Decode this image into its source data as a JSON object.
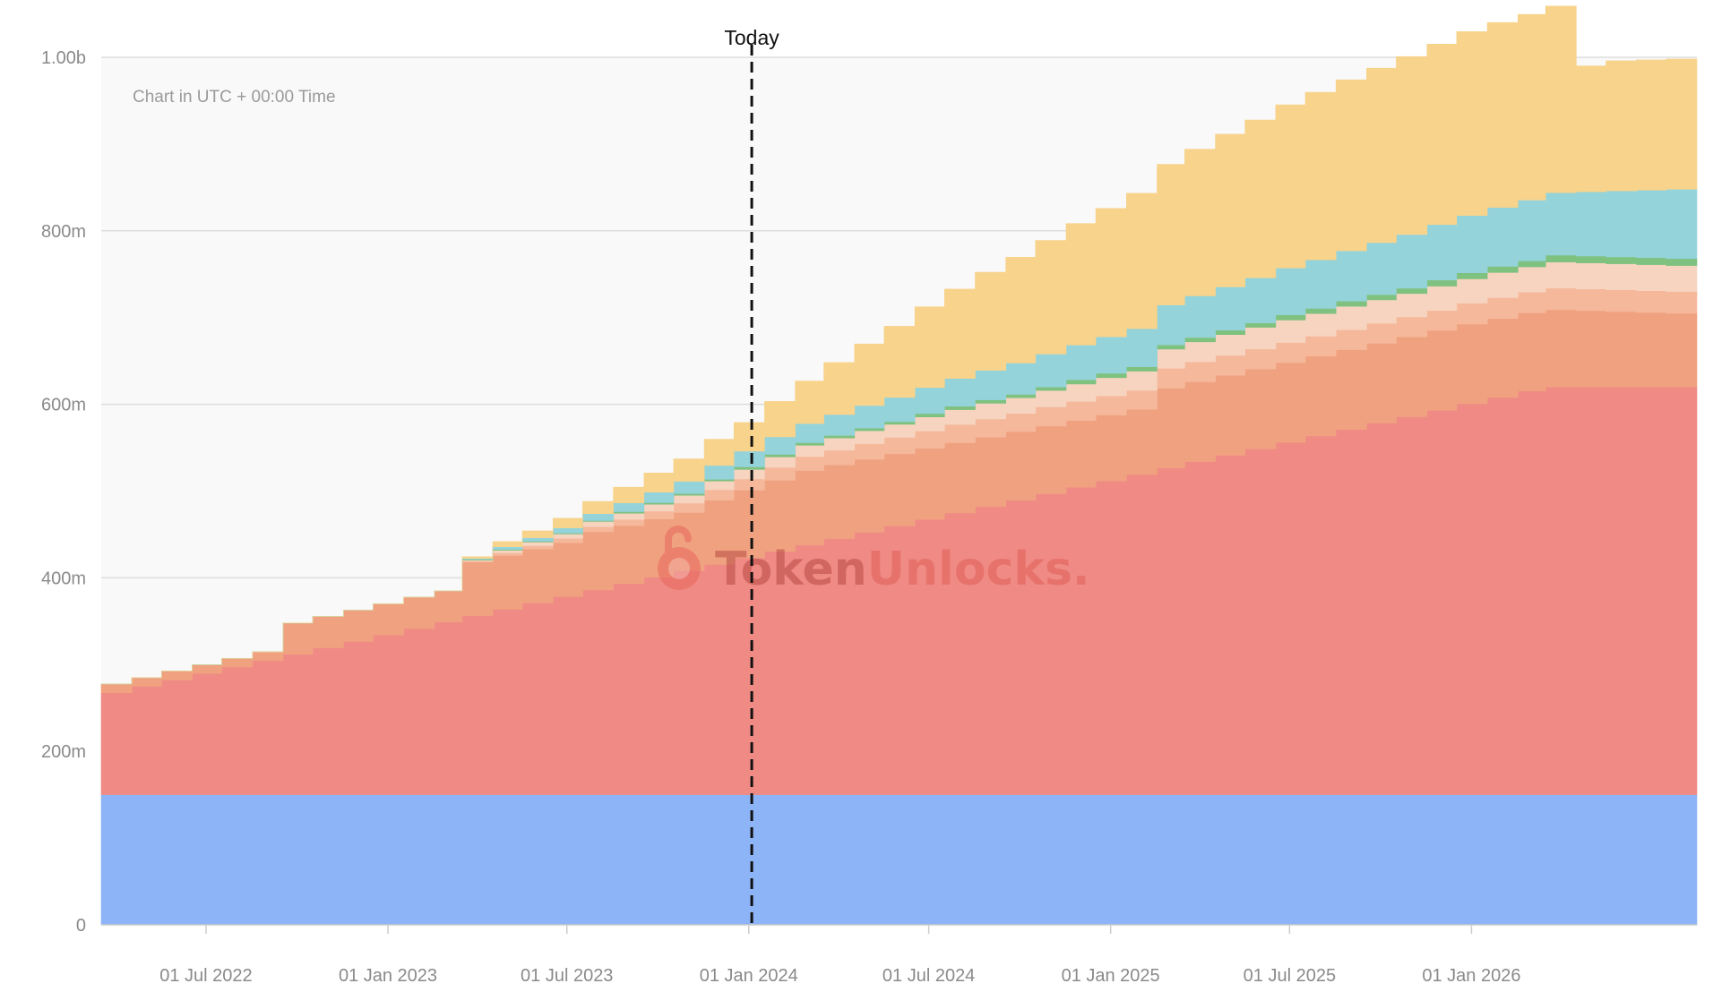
{
  "chart_data": {
    "type": "area",
    "stacked": true,
    "step": true,
    "note": "Chart in UTC + 00:00 Time",
    "today_label": "Today",
    "today_date": "2024-01-04",
    "watermark": {
      "text_dark": "Token",
      "text_light": "Unlocks",
      "dot": "."
    },
    "y_ticks": [
      {
        "value": 0,
        "label": "0"
      },
      {
        "value": 200000000,
        "label": "200m"
      },
      {
        "value": 400000000,
        "label": "400m"
      },
      {
        "value": 600000000,
        "label": "600m"
      },
      {
        "value": 800000000,
        "label": "800m"
      },
      {
        "value": 1000000000,
        "label": "1.00b"
      }
    ],
    "x_ticks": [
      {
        "date": "2022-07-01",
        "label": "01 Jul 2022"
      },
      {
        "date": "2023-01-01",
        "label": "01 Jan 2023"
      },
      {
        "date": "2023-07-01",
        "label": "01 Jul 2023"
      },
      {
        "date": "2024-01-01",
        "label": "01 Jan 2024"
      },
      {
        "date": "2024-07-01",
        "label": "01 Jul 2024"
      },
      {
        "date": "2025-01-01",
        "label": "01 Jan 2025"
      },
      {
        "date": "2025-07-01",
        "label": "01 Jul 2025"
      },
      {
        "date": "2026-01-01",
        "label": "01 Jan 2026"
      }
    ],
    "xlim": [
      "2022-03-17",
      "2026-08-17"
    ],
    "ylim": [
      0,
      1000000000
    ],
    "grid": true,
    "legend": "none",
    "x": [
      "2022-03-17",
      "2022-04-17",
      "2022-05-17",
      "2022-06-17",
      "2022-07-17",
      "2022-08-17",
      "2022-09-17",
      "2022-10-17",
      "2022-11-17",
      "2022-12-17",
      "2023-01-17",
      "2023-02-17",
      "2023-03-17",
      "2023-04-17",
      "2023-05-17",
      "2023-06-17",
      "2023-07-17",
      "2023-08-17",
      "2023-09-17",
      "2023-10-17",
      "2023-11-17",
      "2023-12-17",
      "2024-01-17",
      "2024-02-17",
      "2024-03-17",
      "2024-04-17",
      "2024-05-17",
      "2024-06-17",
      "2024-07-17",
      "2024-08-17",
      "2024-09-17",
      "2024-10-17",
      "2024-11-17",
      "2024-12-17",
      "2025-01-17",
      "2025-02-17",
      "2025-03-17",
      "2025-04-17",
      "2025-05-17",
      "2025-06-17",
      "2025-07-17",
      "2025-08-17",
      "2025-09-17",
      "2025-10-17",
      "2025-11-17",
      "2025-12-17",
      "2026-01-17",
      "2026-02-17",
      "2026-03-17",
      "2026-04-17",
      "2026-05-17",
      "2026-06-17",
      "2026-07-17"
    ],
    "series": [
      {
        "color": "#8db4f7",
        "values": [
          150,
          150,
          150,
          150,
          150,
          150,
          150,
          150,
          150,
          150,
          150,
          150,
          150,
          150,
          150,
          150,
          150,
          150,
          150,
          150,
          150,
          150,
          150,
          150,
          150,
          150,
          150,
          150,
          150,
          150,
          150,
          150,
          150,
          150,
          150,
          150,
          150,
          150,
          150,
          150,
          150,
          150,
          150,
          150,
          150,
          150,
          150,
          150,
          150,
          150,
          150,
          150,
          150
        ]
      },
      {
        "color": "#ef8b84",
        "values": [
          117.6,
          125,
          132.4,
          139.8,
          147.2,
          154.6,
          162,
          169.4,
          176.8,
          184.2,
          191.6,
          199,
          206.4,
          213.8,
          221.2,
          228.6,
          236,
          243.4,
          250.8,
          258.2,
          265.6,
          273,
          280.4,
          287.8,
          295.2,
          302.6,
          310,
          317.4,
          324.8,
          332.2,
          339.6,
          347,
          354.4,
          361.8,
          369.2,
          376.6,
          384,
          391.4,
          398.8,
          406.2,
          413.6,
          421,
          428.4,
          435.8,
          443.2,
          450.6,
          458,
          465.4,
          470,
          470,
          470,
          470,
          470
        ]
      },
      {
        "color": "#f0a280",
        "values": [
          10,
          10,
          10,
          10,
          10,
          10,
          36,
          36,
          36,
          36,
          36,
          36,
          62,
          62,
          62,
          62,
          67,
          67,
          67,
          67,
          74,
          78,
          82,
          86,
          85,
          84,
          83,
          82,
          81,
          80,
          79,
          78,
          77,
          76,
          75,
          92,
          92,
          92,
          92,
          92,
          92,
          92,
          92,
          92,
          92,
          92,
          91,
          90,
          89,
          88,
          87,
          86,
          85
        ]
      },
      {
        "color": "#f5b89b",
        "values": [
          0,
          0,
          0,
          0,
          0,
          0,
          0,
          0,
          0,
          0,
          0,
          0,
          1,
          3,
          4,
          5,
          6,
          7,
          9,
          11,
          12,
          13,
          15,
          16,
          17,
          18,
          19,
          20,
          21,
          21,
          21,
          22,
          22,
          22,
          22,
          23,
          23,
          23,
          23,
          23,
          23,
          23,
          23,
          23,
          23,
          24,
          24,
          24,
          25,
          25,
          25,
          25,
          25
        ]
      },
      {
        "color": "#f6d4c0",
        "values": [
          0,
          0,
          0,
          0,
          0,
          0,
          0,
          0,
          0,
          0,
          0,
          0,
          1,
          3,
          4,
          5,
          6,
          7,
          8,
          9,
          10,
          11,
          12,
          13,
          14,
          15,
          15,
          16,
          17,
          18,
          18,
          19,
          20,
          21,
          22,
          22,
          23,
          24,
          25,
          26,
          26,
          27,
          27,
          27,
          28,
          28,
          29,
          29,
          30,
          30,
          30,
          30,
          30
        ]
      },
      {
        "color": "#7fc17f",
        "values": [
          0,
          0,
          0,
          0,
          0,
          0,
          0,
          0,
          0,
          0,
          0,
          0,
          1,
          1,
          1,
          1,
          1,
          2,
          2,
          2,
          2,
          3,
          3,
          3,
          3,
          3,
          3,
          4,
          4,
          4,
          4,
          4,
          5,
          5,
          5,
          5,
          5,
          5,
          5,
          6,
          6,
          6,
          6,
          6,
          7,
          7,
          7,
          7,
          8,
          8,
          8,
          8,
          8
        ]
      },
      {
        "color": "#94d3da",
        "values": [
          0,
          0,
          0,
          0,
          0,
          0,
          0,
          0,
          0,
          0,
          0,
          0,
          1,
          3,
          4,
          6,
          8,
          10,
          12,
          14,
          16,
          18,
          20,
          22,
          24,
          26,
          28,
          30,
          32,
          34,
          36,
          38,
          40,
          42,
          44,
          46,
          48,
          50,
          52,
          54,
          56,
          58,
          60,
          62,
          64,
          66,
          68,
          70,
          72,
          74,
          76,
          78,
          80
        ]
      },
      {
        "color": "#f8d38b",
        "values": [
          0,
          0,
          0,
          0,
          0,
          0,
          0,
          0,
          0,
          0,
          0,
          0,
          2,
          6,
          8,
          11,
          14,
          18,
          22,
          26,
          30,
          33,
          41,
          49,
          60,
          71,
          82,
          93,
          103,
          113,
          122,
          131,
          140,
          148,
          156,
          162,
          169,
          176,
          182,
          188,
          193,
          197,
          201,
          205,
          208,
          212,
          213,
          214,
          215,
          145,
          150,
          150,
          150
        ]
      }
    ]
  }
}
